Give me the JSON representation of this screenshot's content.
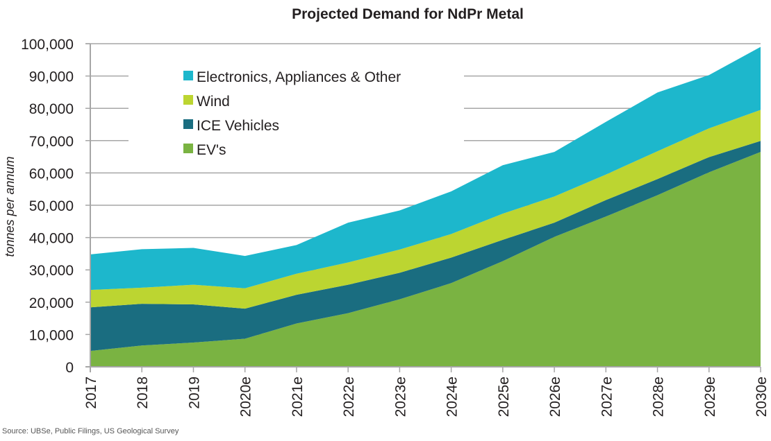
{
  "chart_data": {
    "type": "area",
    "stacked": true,
    "title": "Projected Demand for NdPr Metal",
    "xlabel": "",
    "ylabel": "tonnes per annum",
    "ylim": [
      0,
      100000
    ],
    "yticks": [
      0,
      10000,
      20000,
      30000,
      40000,
      50000,
      60000,
      70000,
      80000,
      90000,
      100000
    ],
    "ytick_labels": [
      "0",
      "10,000",
      "20,000",
      "30,000",
      "40,000",
      "50,000",
      "60,000",
      "70,000",
      "80,000",
      "90,000",
      "100,000"
    ],
    "grid": "horizontal",
    "legend_position": "top-left",
    "categories": [
      "2017",
      "2018",
      "2019",
      "2020e",
      "2021e",
      "2022e",
      "2023e",
      "2024e",
      "2025e",
      "2026e",
      "2027e",
      "2028e",
      "2029e",
      "2030e"
    ],
    "series": [
      {
        "name": "EV's",
        "color": "#7ab342",
        "values": [
          4900,
          6600,
          7500,
          8700,
          13400,
          16600,
          20900,
          25900,
          32700,
          40200,
          46500,
          53100,
          60200,
          66500
        ]
      },
      {
        "name": "ICE Vehicles",
        "color": "#1a6d80",
        "values": [
          13500,
          12900,
          11800,
          9300,
          8900,
          8800,
          8200,
          7900,
          6600,
          4400,
          5100,
          5000,
          4700,
          3400
        ]
      },
      {
        "name": "Wind",
        "color": "#bcd531",
        "values": [
          5400,
          5000,
          6100,
          6300,
          6500,
          6900,
          7200,
          7300,
          8100,
          8100,
          7900,
          8600,
          8900,
          9600
        ]
      },
      {
        "name": "Electronics, Appliances & Other",
        "color": "#1db7cc",
        "values": [
          11000,
          11900,
          11400,
          10000,
          8900,
          12300,
          12100,
          13200,
          15000,
          13800,
          16300,
          18200,
          16500,
          19500
        ]
      }
    ],
    "legend_order": [
      "Electronics, Appliances & Other",
      "Wind",
      "ICE Vehicles",
      "EV's"
    ],
    "source": "Source: UBSe, Public Filings, US Geological Survey"
  }
}
